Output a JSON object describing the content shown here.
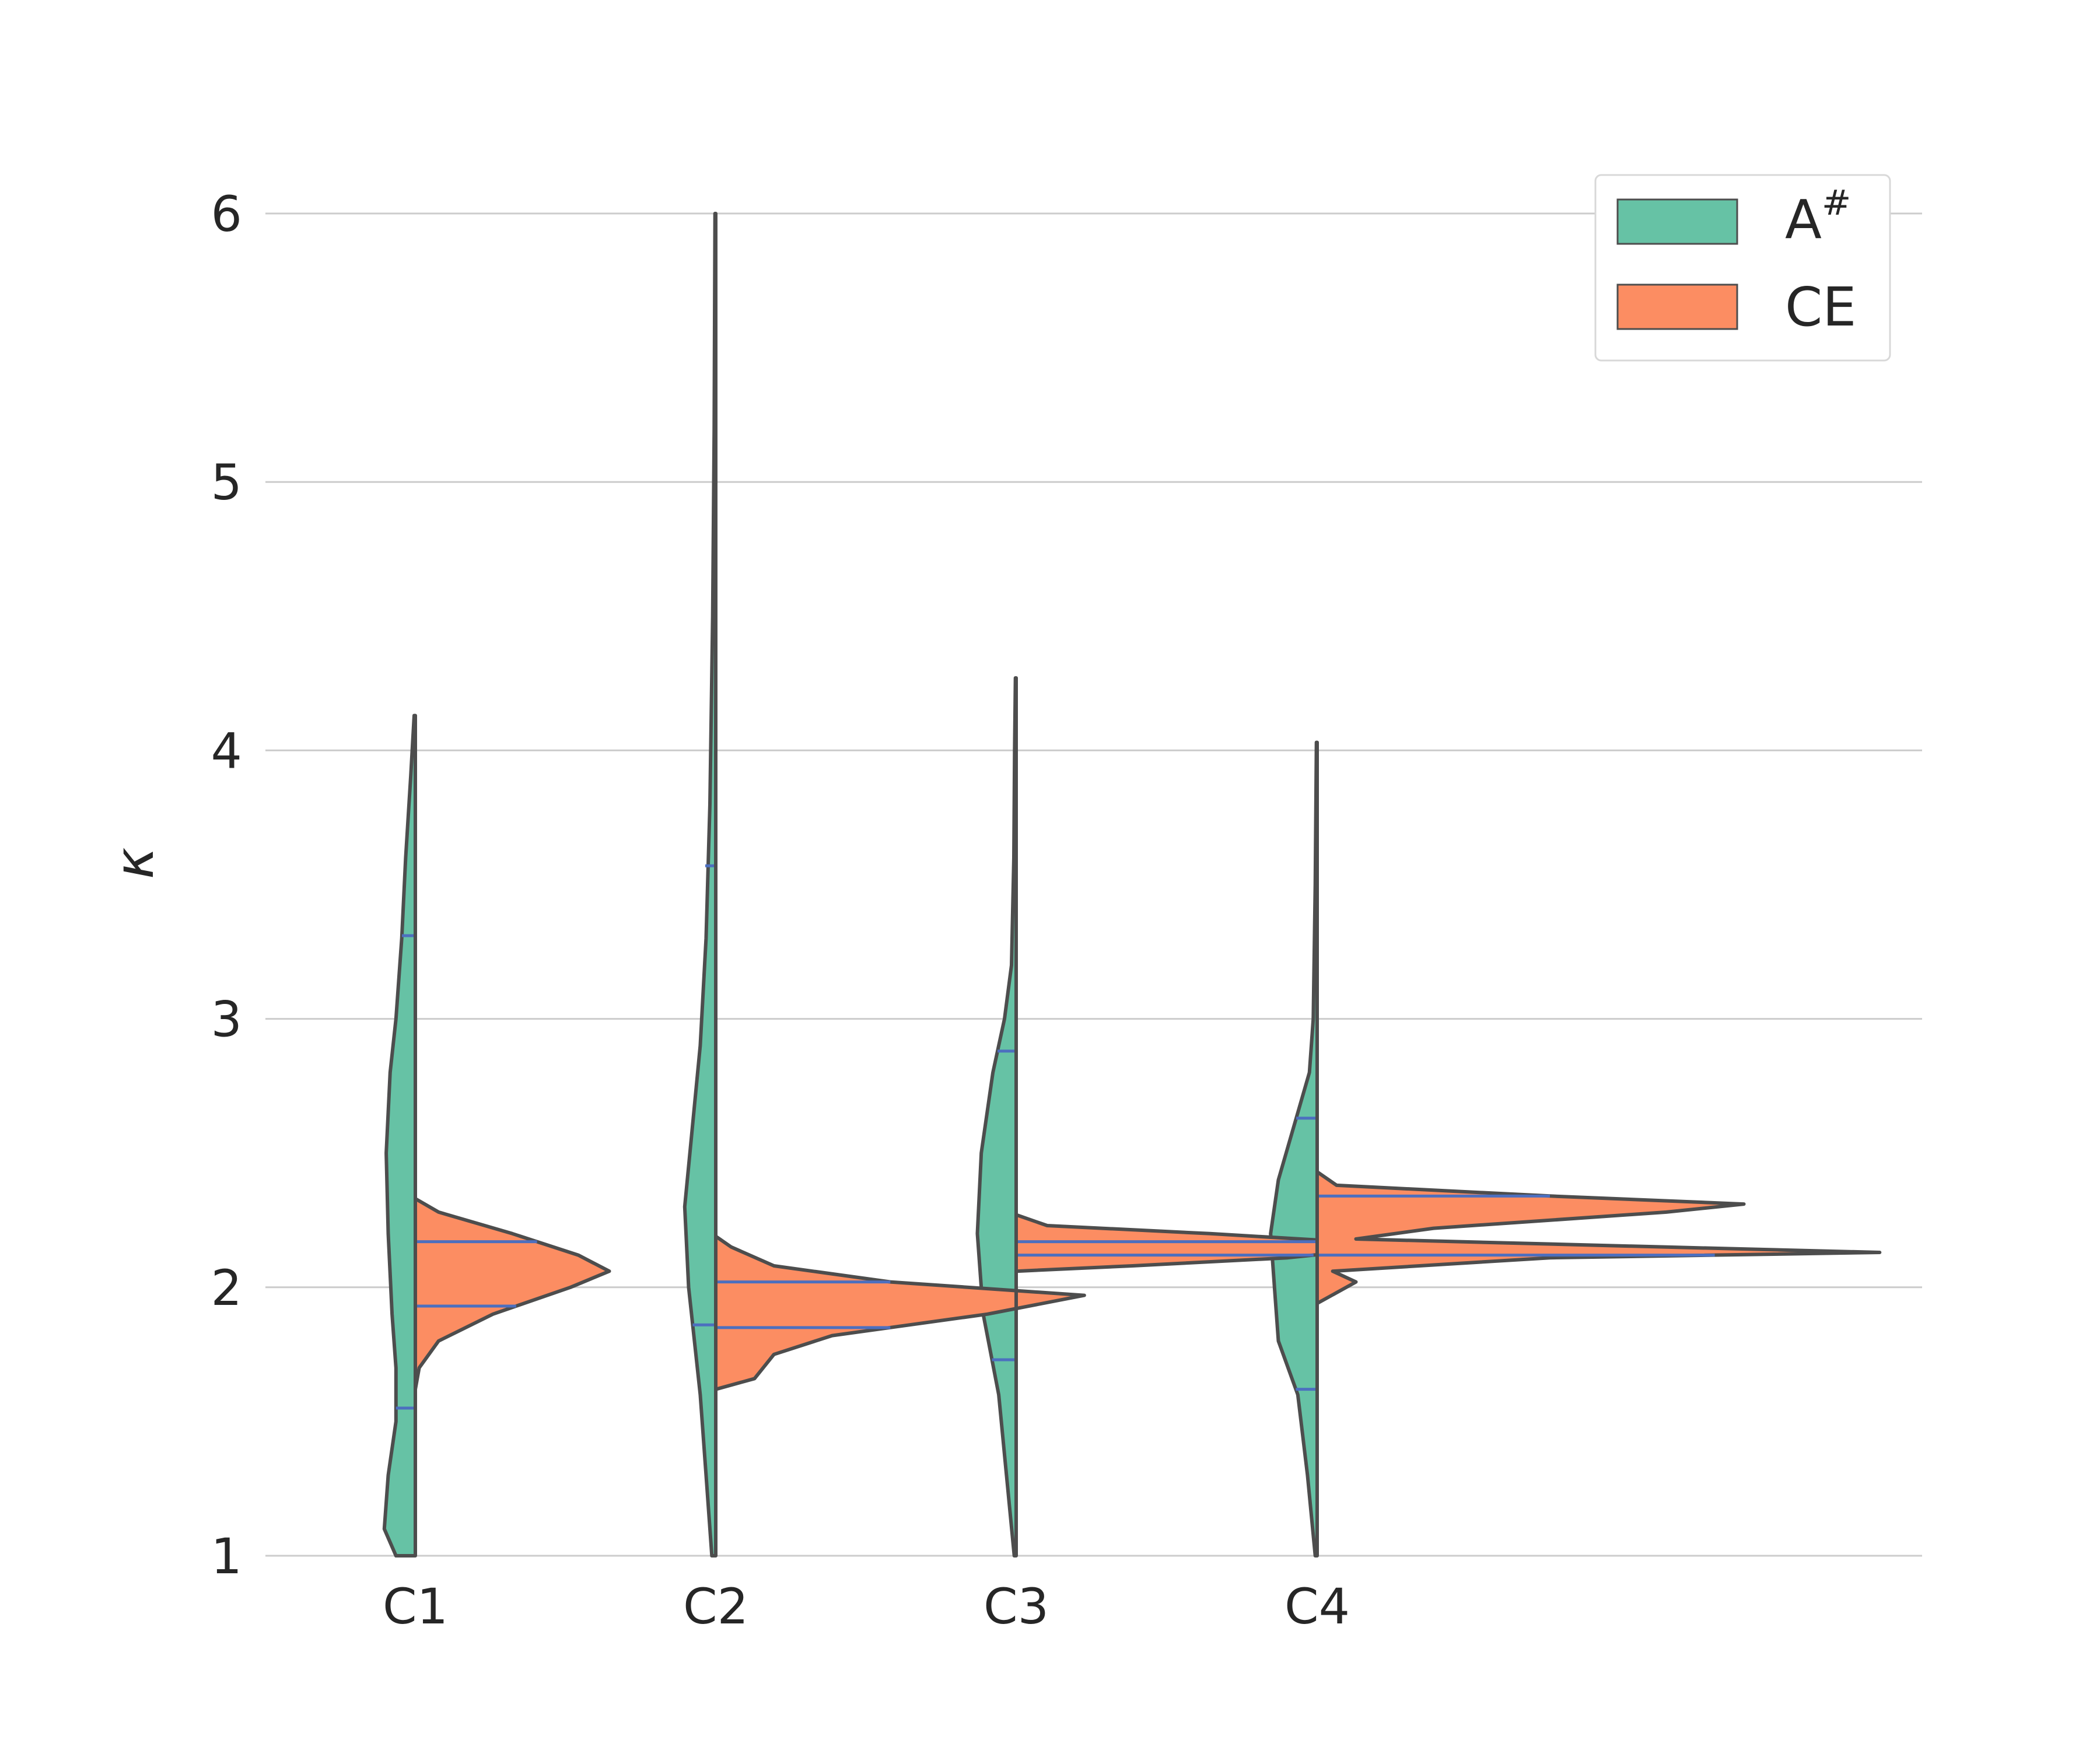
{
  "chart_data": {
    "type": "violin",
    "title": "",
    "xlabel": "",
    "ylabel": "κ",
    "ylim": [
      1,
      6
    ],
    "yticks": [
      1,
      2,
      3,
      4,
      5,
      6
    ],
    "grid": true,
    "legend_position": "top-right",
    "categories": [
      "C1",
      "C2",
      "C3",
      "C4"
    ],
    "colors": {
      "A#": "#66c2a5",
      "CE": "#fc8d62"
    },
    "series": [
      {
        "name": "A",
        "name_superscript": "#",
        "side": "left",
        "color": "#66c2a5",
        "violins": [
          {
            "category": "C1",
            "q1": 1.55,
            "q3": 3.31,
            "profile": [
              [
                1.0,
                0.05
              ],
              [
                1.1,
                0.08
              ],
              [
                1.3,
                0.07
              ],
              [
                1.5,
                0.05
              ],
              [
                1.7,
                0.05
              ],
              [
                1.9,
                0.06
              ],
              [
                2.2,
                0.07
              ],
              [
                2.5,
                0.075
              ],
              [
                2.8,
                0.065
              ],
              [
                3.0,
                0.05
              ],
              [
                3.3,
                0.035
              ],
              [
                3.6,
                0.025
              ],
              [
                3.9,
                0.012
              ],
              [
                4.13,
                0.003
              ]
            ]
          },
          {
            "category": "C2",
            "q1": 1.86,
            "q3": 3.57,
            "profile": [
              [
                1.0,
                0.01
              ],
              [
                1.3,
                0.025
              ],
              [
                1.6,
                0.04
              ],
              [
                2.0,
                0.07
              ],
              [
                2.3,
                0.08
              ],
              [
                2.6,
                0.06
              ],
              [
                2.9,
                0.04
              ],
              [
                3.3,
                0.025
              ],
              [
                3.8,
                0.015
              ],
              [
                4.5,
                0.008
              ],
              [
                5.2,
                0.004
              ],
              [
                6.0,
                0.002
              ]
            ]
          },
          {
            "category": "C3",
            "q1": 1.73,
            "q3": 2.88,
            "profile": [
              [
                1.0,
                0.005
              ],
              [
                1.3,
                0.025
              ],
              [
                1.6,
                0.045
              ],
              [
                1.9,
                0.085
              ],
              [
                2.2,
                0.1
              ],
              [
                2.5,
                0.09
              ],
              [
                2.8,
                0.06
              ],
              [
                3.0,
                0.03
              ],
              [
                3.2,
                0.012
              ],
              [
                3.6,
                0.006
              ],
              [
                4.0,
                0.004
              ],
              [
                4.27,
                0.002
              ]
            ]
          },
          {
            "category": "C4",
            "q1": 1.62,
            "q3": 2.63,
            "profile": [
              [
                1.0,
                0.005
              ],
              [
                1.3,
                0.025
              ],
              [
                1.6,
                0.05
              ],
              [
                1.8,
                0.1
              ],
              [
                2.0,
                0.11
              ],
              [
                2.2,
                0.12
              ],
              [
                2.4,
                0.1
              ],
              [
                2.6,
                0.06
              ],
              [
                2.8,
                0.02
              ],
              [
                3.0,
                0.01
              ],
              [
                3.5,
                0.005
              ],
              [
                4.03,
                0.002
              ]
            ]
          }
        ]
      },
      {
        "name": "CE",
        "side": "right",
        "color": "#fc8d62",
        "violins": [
          {
            "category": "C1",
            "q1": 1.93,
            "q3": 2.17,
            "profile": [
              [
                1.62,
                0.0
              ],
              [
                1.7,
                0.01
              ],
              [
                1.8,
                0.06
              ],
              [
                1.9,
                0.2
              ],
              [
                2.0,
                0.4
              ],
              [
                2.06,
                0.5
              ],
              [
                2.12,
                0.42
              ],
              [
                2.2,
                0.25
              ],
              [
                2.28,
                0.06
              ],
              [
                2.33,
                0.0
              ]
            ]
          },
          {
            "category": "C2",
            "q1": 1.85,
            "q3": 2.02,
            "profile": [
              [
                1.62,
                0.0
              ],
              [
                1.66,
                0.1
              ],
              [
                1.75,
                0.15
              ],
              [
                1.82,
                0.3
              ],
              [
                1.9,
                0.7
              ],
              [
                1.97,
                0.95
              ],
              [
                2.02,
                0.45
              ],
              [
                2.08,
                0.15
              ],
              [
                2.15,
                0.04
              ],
              [
                2.19,
                0.0
              ]
            ]
          },
          {
            "category": "C3",
            "q1": 2.12,
            "q3": 2.17,
            "profile": [
              [
                2.06,
                0.0
              ],
              [
                2.08,
                0.3
              ],
              [
                2.11,
                0.7
              ],
              [
                2.14,
                0.9
              ],
              [
                2.17,
                0.85
              ],
              [
                2.2,
                0.5
              ],
              [
                2.23,
                0.08
              ],
              [
                2.27,
                0.0
              ]
            ]
          },
          {
            "category": "C4",
            "q1": 2.12,
            "q3": 2.34,
            "profile": [
              [
                1.94,
                0.0
              ],
              [
                1.98,
                0.05
              ],
              [
                2.02,
                0.1
              ],
              [
                2.06,
                0.04
              ],
              [
                2.11,
                0.6
              ],
              [
                2.13,
                1.45
              ],
              [
                2.15,
                0.9
              ],
              [
                2.18,
                0.1
              ],
              [
                2.22,
                0.3
              ],
              [
                2.28,
                0.9
              ],
              [
                2.31,
                1.1
              ],
              [
                2.34,
                0.6
              ],
              [
                2.38,
                0.05
              ],
              [
                2.43,
                0.0
              ]
            ]
          }
        ]
      }
    ]
  }
}
